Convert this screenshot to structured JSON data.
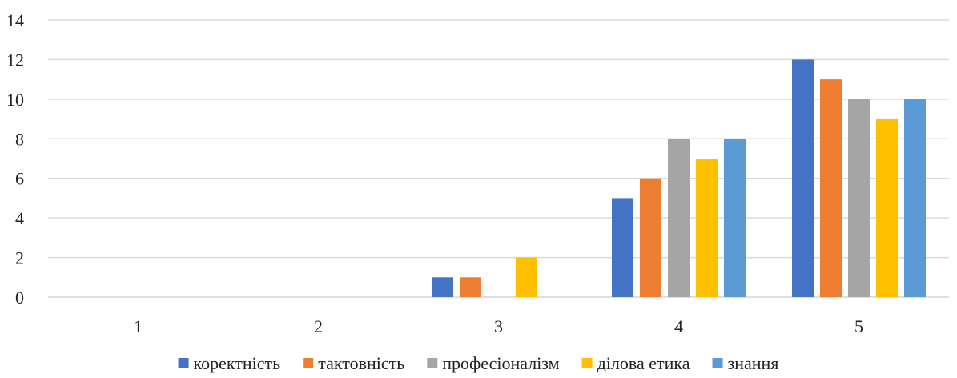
{
  "chart_data": {
    "type": "bar",
    "categories": [
      "1",
      "2",
      "3",
      "4",
      "5"
    ],
    "series": [
      {
        "name": "коректність",
        "color": "#4472C4",
        "values": [
          0,
          0,
          1,
          5,
          12
        ]
      },
      {
        "name": "тактовність",
        "color": "#ED7D31",
        "values": [
          0,
          0,
          1,
          6,
          11
        ]
      },
      {
        "name": "професіоналізм",
        "color": "#A5A5A5",
        "values": [
          0,
          0,
          0,
          8,
          10
        ]
      },
      {
        "name": "ділова етика",
        "color": "#FFC000",
        "values": [
          0,
          0,
          2,
          7,
          9
        ]
      },
      {
        "name": "знання",
        "color": "#5B9BD5",
        "values": [
          0,
          0,
          0,
          8,
          10
        ]
      }
    ],
    "ylim": [
      0,
      14
    ],
    "yticks": [
      "0",
      "2",
      "4",
      "6",
      "8",
      "10",
      "12",
      "14"
    ],
    "grid": true,
    "legend_position": "bottom",
    "title": "",
    "xlabel": "",
    "ylabel": ""
  }
}
